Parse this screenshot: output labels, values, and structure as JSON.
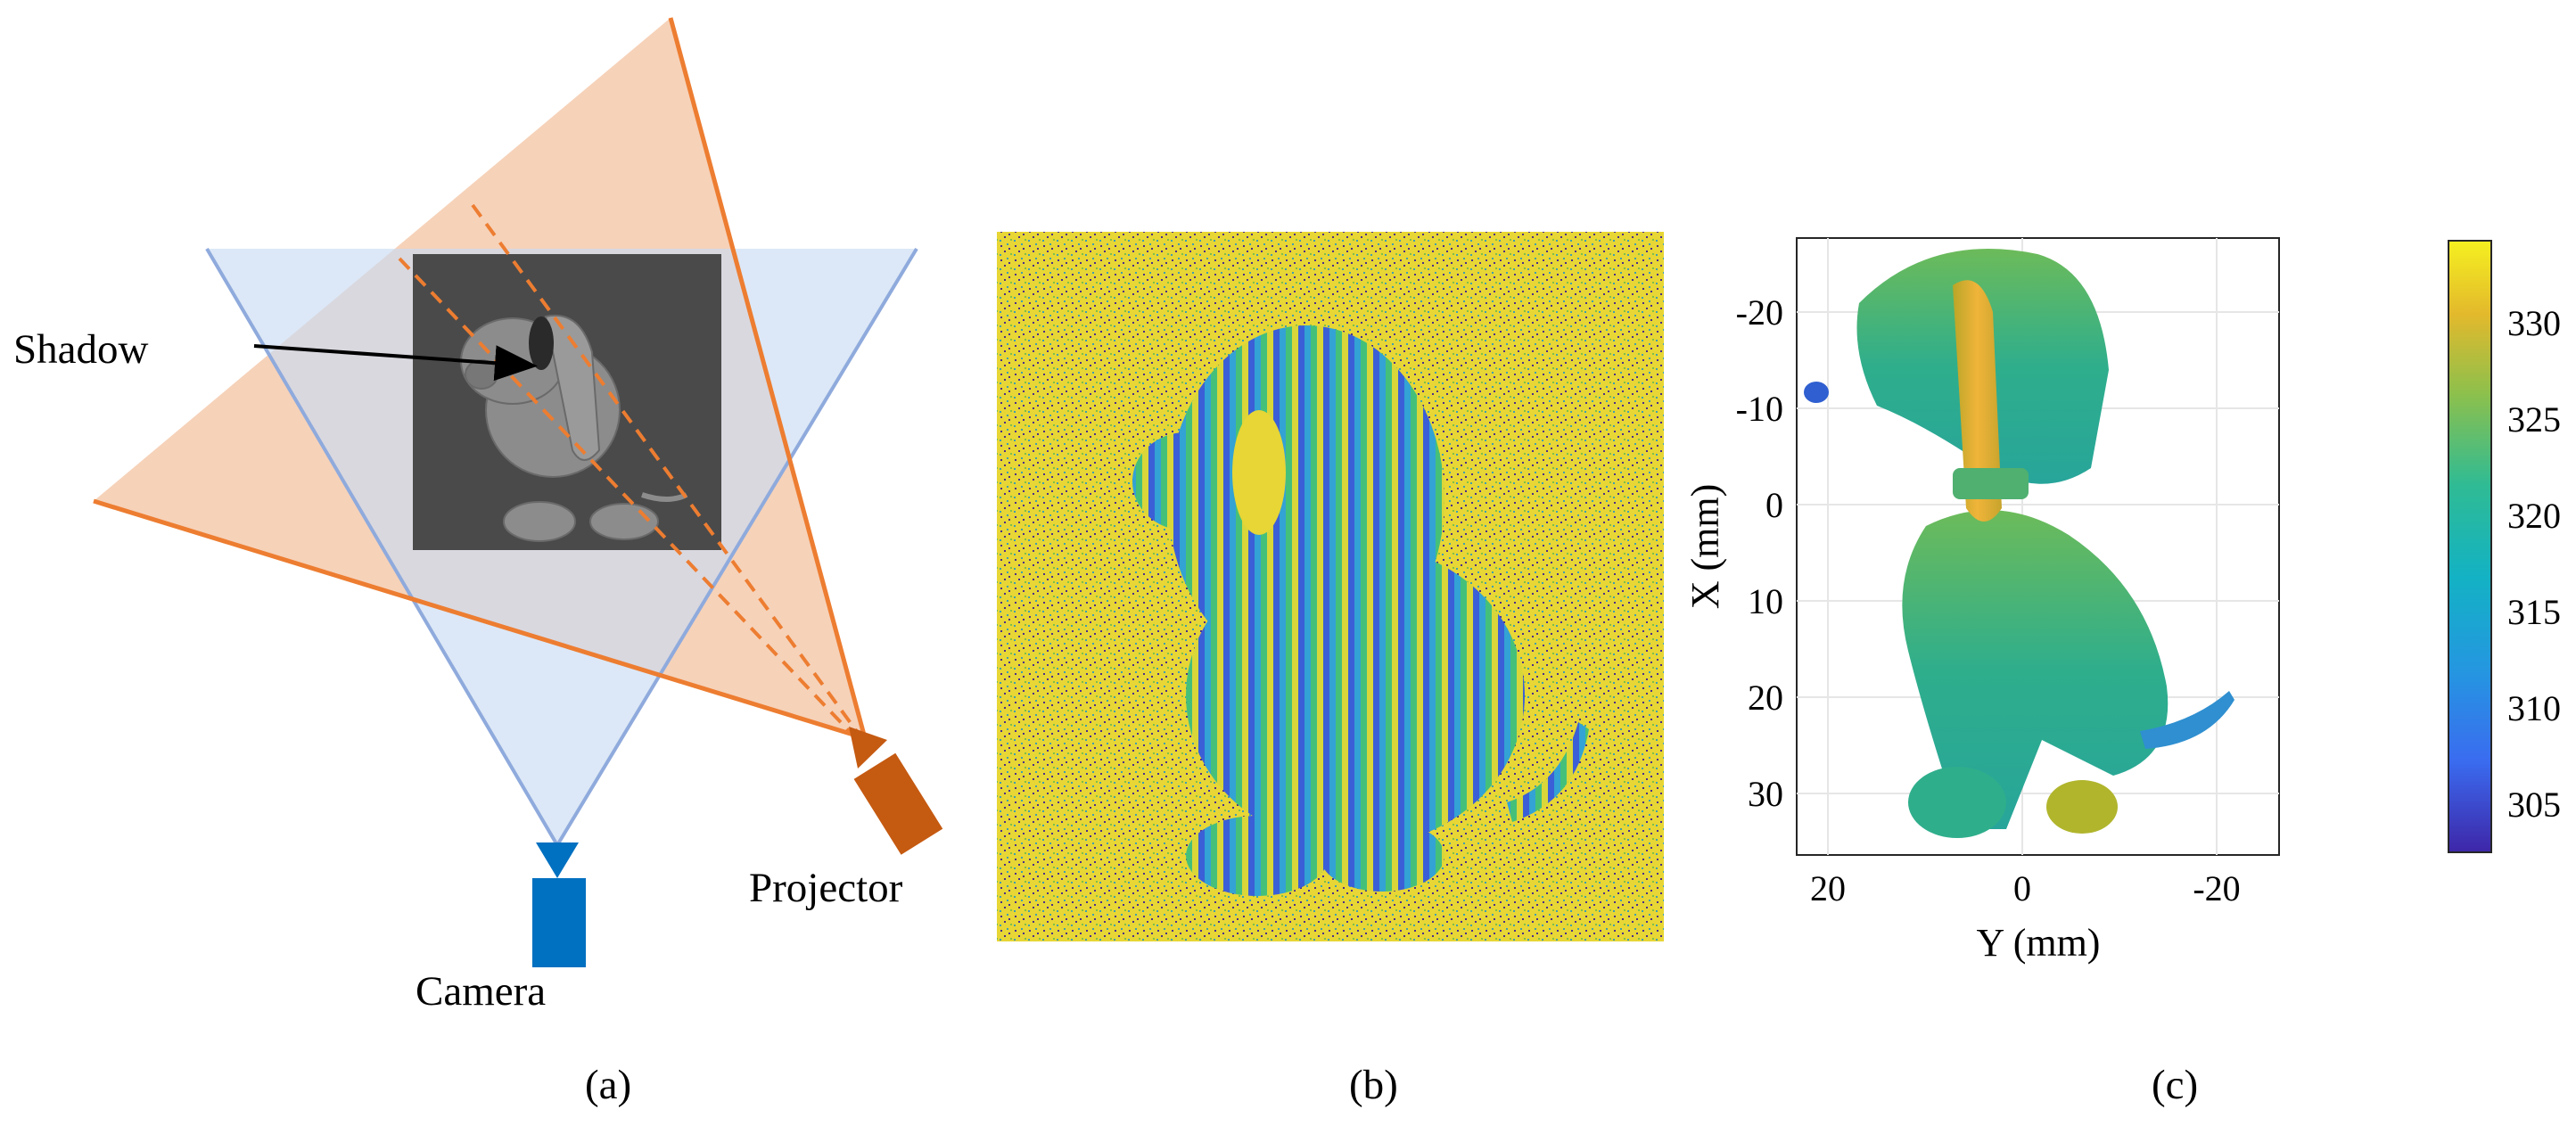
{
  "panel_a": {
    "shadow_label": "Shadow",
    "camera_label": "Camera",
    "projector_label": "Projector",
    "caption": "(a)",
    "colors": {
      "projector": "#ed7d31",
      "projector_body": "#c55a11",
      "camera": "#4472c4",
      "camera_body": "#0070c0",
      "scene": "#4a4a4a"
    }
  },
  "panel_b": {
    "caption": "(b)"
  },
  "panel_c": {
    "caption": "(c)",
    "xlabel": "Y (mm)",
    "ylabel": "X (mm)",
    "x_ticks": [
      "20",
      "0",
      "-20"
    ],
    "y_ticks": [
      "-20",
      "-10",
      "0",
      "10",
      "20",
      "30"
    ],
    "colorbar_ticks": [
      "330",
      "325",
      "320",
      "315",
      "310",
      "305"
    ]
  }
}
